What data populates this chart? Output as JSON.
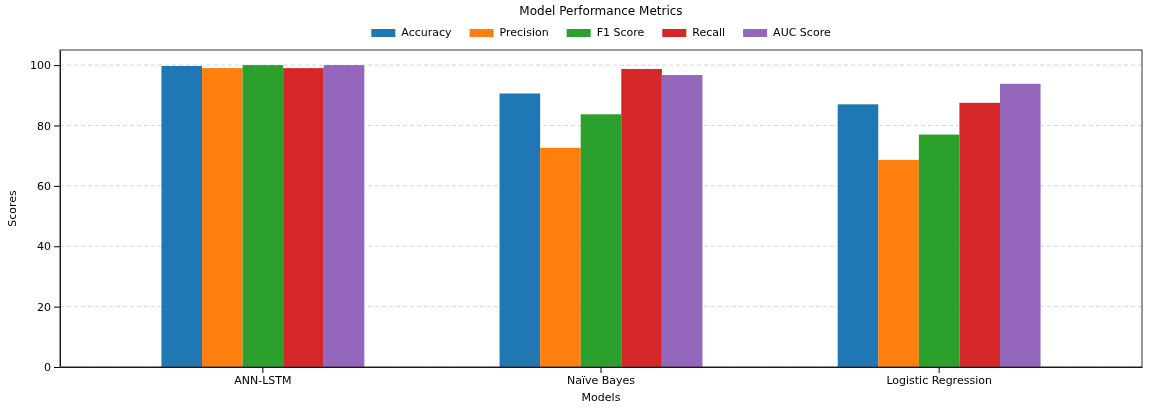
{
  "chart_data": {
    "type": "bar",
    "title": "Model Performance Metrics",
    "xlabel": "Models",
    "ylabel": "Scores",
    "categories": [
      "ANN-LSTM",
      "Naïve Bayes",
      "Logistic Regression"
    ],
    "series": [
      {
        "name": "Accuracy",
        "color": "#1f77b4",
        "values": [
          99.7,
          90.6,
          87.0
        ]
      },
      {
        "name": "Precision",
        "color": "#ff7f0e",
        "values": [
          99.0,
          72.6,
          68.6
        ]
      },
      {
        "name": "F1 Score",
        "color": "#2ca02c",
        "values": [
          100.0,
          83.7,
          77.0
        ]
      },
      {
        "name": "Recall",
        "color": "#d62728",
        "values": [
          99.0,
          98.7,
          87.5
        ]
      },
      {
        "name": "AUC Score",
        "color": "#9467bd",
        "values": [
          100.0,
          96.7,
          93.8
        ]
      }
    ],
    "ylim": [
      0,
      105
    ],
    "yticks": [
      0,
      20,
      40,
      60,
      80,
      100
    ],
    "grid": "y",
    "legend": "top"
  }
}
